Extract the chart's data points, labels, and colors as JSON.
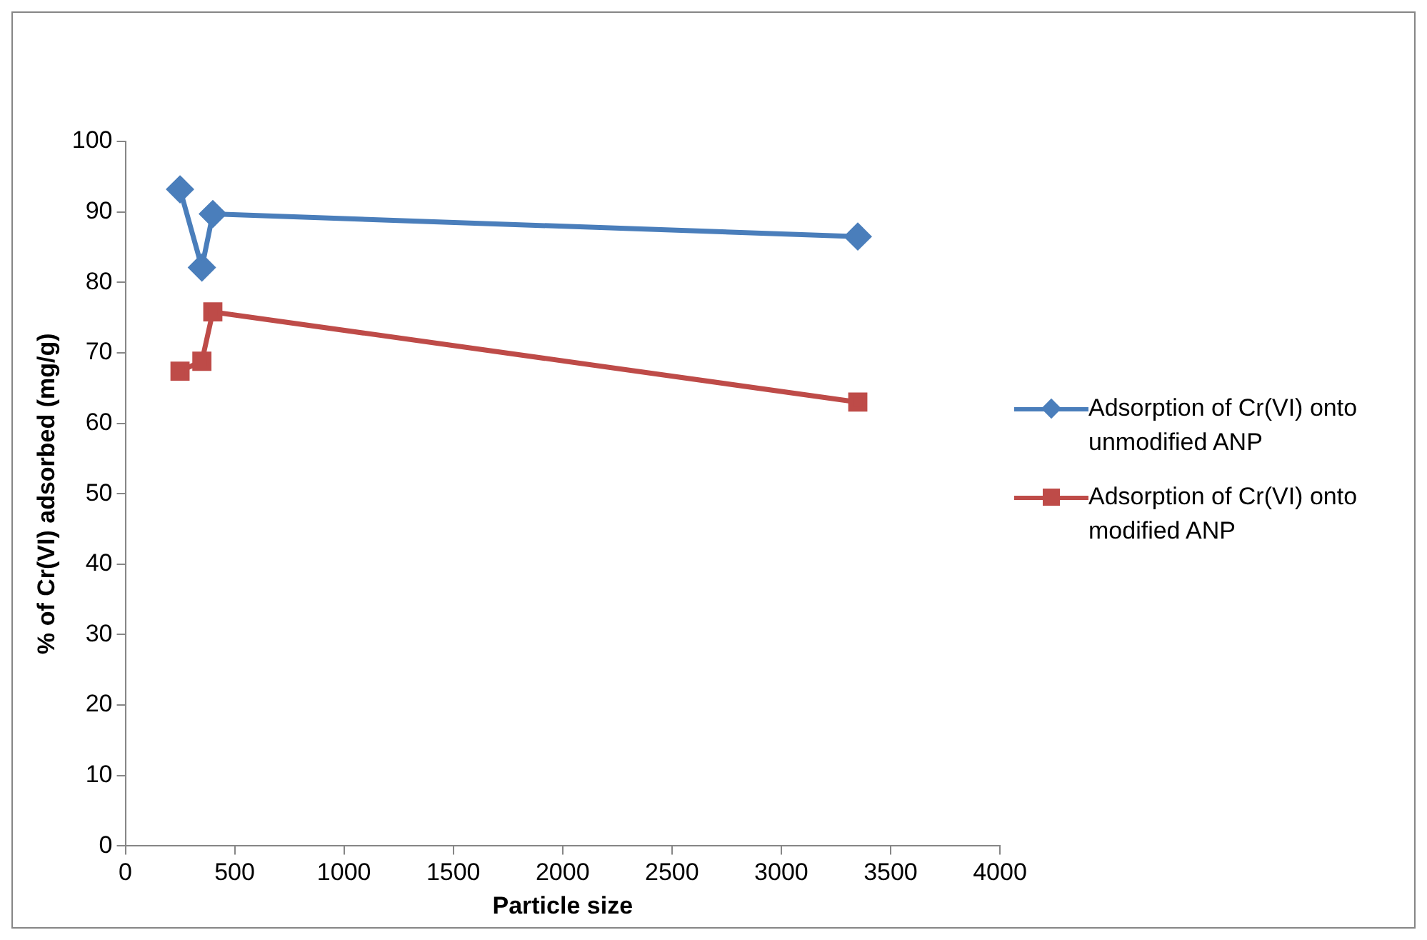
{
  "chart_data": {
    "type": "line",
    "xlabel": "Particle size",
    "ylabel": "% of Cr(VI) adsorbed (mg/g)",
    "x": [
      250,
      350,
      400,
      3350
    ],
    "series": [
      {
        "name": "Adsorption of Cr(VI) onto unmodified ANP",
        "color": "#4a7ebb",
        "marker": "diamond",
        "values": [
          93.2,
          82.1,
          89.7,
          86.5
        ]
      },
      {
        "name": "Adsorption of Cr(VI) onto modified ANP",
        "color": "#be4b48",
        "marker": "square",
        "values": [
          67.4,
          68.8,
          75.8,
          63.0
        ]
      }
    ],
    "xlim": [
      0,
      4000
    ],
    "xticks": [
      0,
      500,
      1000,
      1500,
      2000,
      2500,
      3000,
      3500,
      4000
    ],
    "ylim": [
      0,
      100
    ],
    "yticks": [
      0,
      10,
      20,
      30,
      40,
      50,
      60,
      70,
      80,
      90,
      100
    ],
    "grid": false,
    "legend": "right"
  }
}
